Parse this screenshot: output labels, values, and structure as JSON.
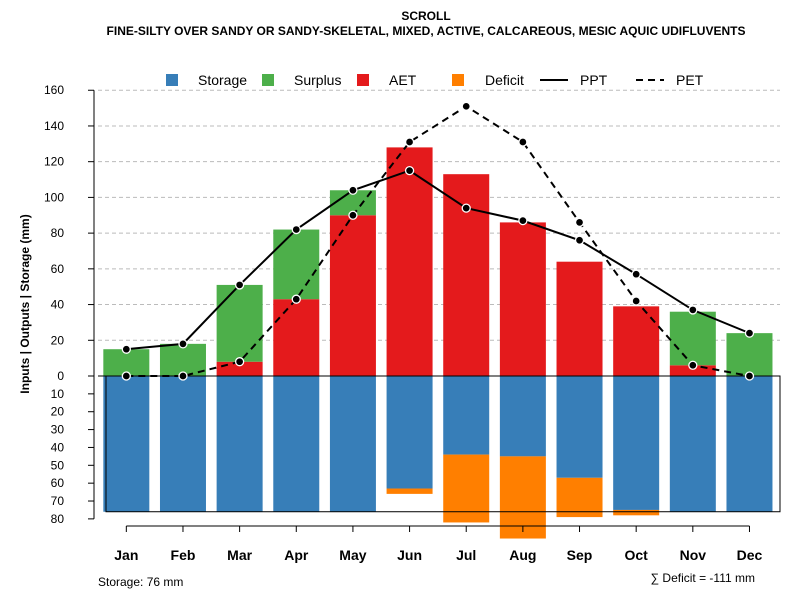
{
  "chart_data": {
    "type": "bar",
    "title": "SCROLL",
    "subtitle": "FINE-SILTY OVER SANDY OR SANDY-SKELETAL, MIXED, ACTIVE, CALCAREOUS, MESIC AQUIC UDIFLUVENTS",
    "ylabel": "Inputs | Outputs | Storage    (mm)",
    "categories": [
      "Jan",
      "Feb",
      "Mar",
      "Apr",
      "May",
      "Jun",
      "Jul",
      "Aug",
      "Sep",
      "Oct",
      "Nov",
      "Dec"
    ],
    "ylim_upper": [
      0,
      160
    ],
    "ylim_lower": [
      0,
      80
    ],
    "yticks_upper": [
      0,
      20,
      40,
      60,
      80,
      100,
      120,
      140,
      160
    ],
    "yticks_lower": [
      10,
      20,
      30,
      40,
      50,
      60,
      70,
      80
    ],
    "storage_capacity": 76,
    "legend": [
      "Storage",
      "Surplus",
      "AET",
      "Deficit",
      "PPT",
      "PET"
    ],
    "colors": {
      "Storage": "#377EB8",
      "Surplus": "#4DAF4A",
      "AET": "#E41A1C",
      "Deficit": "#FF7F00",
      "grid": "#bbbbbb"
    },
    "series": [
      {
        "name": "AET",
        "values": [
          0,
          0,
          8,
          43,
          90,
          128,
          113,
          86,
          64,
          39,
          6,
          0
        ]
      },
      {
        "name": "Surplus",
        "values": [
          15,
          18,
          43,
          39,
          14,
          0,
          0,
          0,
          0,
          0,
          30,
          24
        ]
      },
      {
        "name": "Storage",
        "values": [
          76,
          76,
          76,
          76,
          76,
          63,
          44,
          45,
          57,
          75,
          76,
          76
        ]
      },
      {
        "name": "Deficit",
        "values": [
          0,
          0,
          0,
          0,
          0,
          3,
          38,
          46,
          22,
          3,
          0,
          0
        ]
      },
      {
        "name": "PPT",
        "values": [
          15,
          18,
          51,
          82,
          104,
          115,
          94,
          87,
          76,
          57,
          37,
          24
        ]
      },
      {
        "name": "PET",
        "values": [
          0,
          0,
          8,
          43,
          90,
          131,
          151,
          131,
          86,
          42,
          6,
          0
        ]
      }
    ],
    "footer_left": "Storage: 76 mm",
    "footer_right": "∑ Deficit = -111 mm"
  }
}
